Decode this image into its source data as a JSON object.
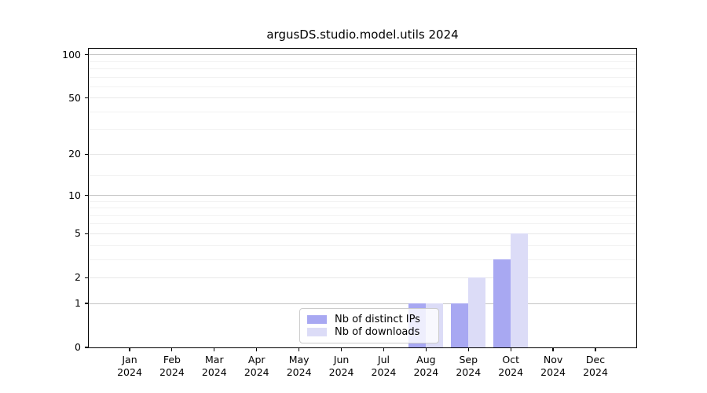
{
  "chart_data": {
    "type": "bar",
    "title": "argusDS.studio.model.utils 2024",
    "year": "2024",
    "months": [
      "Jan",
      "Feb",
      "Mar",
      "Apr",
      "May",
      "Jun",
      "Jul",
      "Aug",
      "Sep",
      "Oct",
      "Nov",
      "Dec"
    ],
    "categories": [
      "Jan 2024",
      "Feb 2024",
      "Mar 2024",
      "Apr 2024",
      "May 2024",
      "Jun 2024",
      "Jul 2024",
      "Aug 2024",
      "Sep 2024",
      "Oct 2024",
      "Nov 2024",
      "Dec 2024"
    ],
    "series": [
      {
        "name": "Nb of distinct IPs",
        "color": "#a8a8f2",
        "values": [
          0,
          0,
          0,
          0,
          0,
          0,
          0,
          1,
          1,
          3,
          0,
          0
        ]
      },
      {
        "name": "Nb of downloads",
        "color": "#dcdcf7",
        "values": [
          0,
          0,
          0,
          0,
          0,
          0,
          0,
          1,
          2,
          5,
          0,
          0
        ]
      }
    ],
    "xlabel": "",
    "ylabel": "",
    "yscale": "log1p",
    "ylim": [
      0,
      110
    ],
    "yticks": [
      0,
      1,
      2,
      5,
      10,
      20,
      50,
      100
    ],
    "yticks_strong": [
      1,
      10,
      100
    ],
    "yticks_minor": [
      3,
      4,
      6,
      7,
      8,
      9,
      14,
      30,
      40,
      60,
      70,
      80,
      90
    ],
    "grid": "horizontal",
    "legend_position": "lower center",
    "colors": {
      "axis": "#000000",
      "text": "#000000",
      "grid_strong": "#c5c5c5",
      "grid_light": "#e8e8e8",
      "grid_minor": "#f2f2f2",
      "legend_border": "#cccccc",
      "background": "#ffffff"
    }
  }
}
